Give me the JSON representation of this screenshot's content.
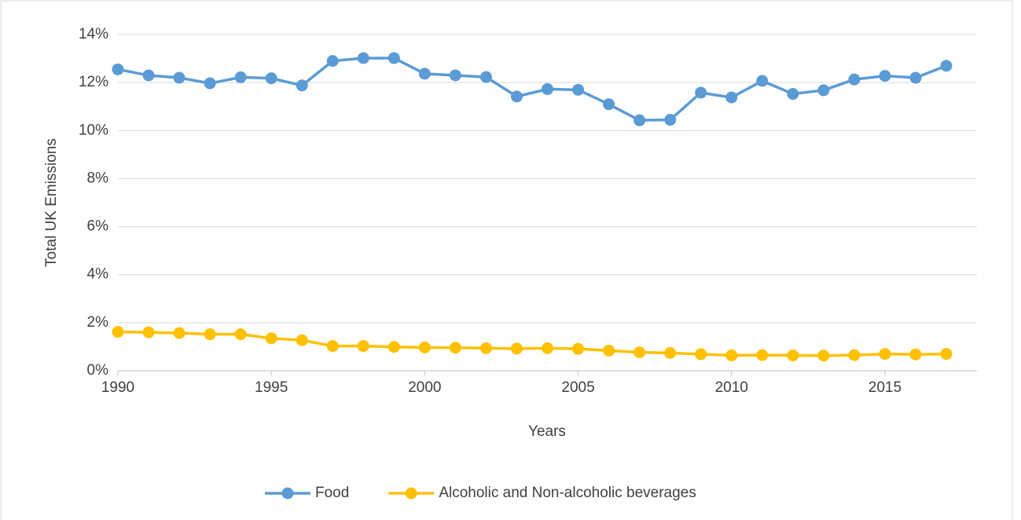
{
  "chart_data": {
    "type": "line",
    "x_label": "Years",
    "y_label": "Total UK Emissions",
    "x": [
      1990,
      1991,
      1992,
      1993,
      1994,
      1995,
      1996,
      1997,
      1998,
      1999,
      2000,
      2001,
      2002,
      2003,
      2004,
      2005,
      2006,
      2007,
      2008,
      2009,
      2010,
      2011,
      2012,
      2013,
      2014,
      2015,
      2016,
      2017
    ],
    "series": [
      {
        "name": "Food",
        "color": "#5b9bd5",
        "values": [
          12.55,
          12.3,
          12.2,
          11.97,
          12.22,
          12.18,
          11.88,
          12.9,
          13.02,
          13.02,
          12.37,
          12.3,
          12.23,
          11.42,
          11.73,
          11.7,
          11.1,
          10.43,
          10.45,
          11.58,
          11.38,
          12.07,
          11.53,
          11.68,
          12.13,
          12.28,
          12.2,
          12.7
        ]
      },
      {
        "name": "Alcoholic and Non-alcoholic beverages",
        "color": "#ffc000",
        "values": [
          1.62,
          1.6,
          1.57,
          1.52,
          1.52,
          1.35,
          1.27,
          1.03,
          1.03,
          0.99,
          0.97,
          0.96,
          0.94,
          0.92,
          0.94,
          0.91,
          0.84,
          0.77,
          0.74,
          0.69,
          0.64,
          0.65,
          0.64,
          0.63,
          0.65,
          0.7,
          0.68,
          0.7
        ]
      }
    ],
    "xlim": [
      1990,
      2018
    ],
    "xticks": [
      1990,
      1995,
      2000,
      2005,
      2010,
      2015
    ],
    "ylim": [
      0,
      14
    ],
    "yticks": [
      {
        "value": 0,
        "label": "0%"
      },
      {
        "value": 2,
        "label": "2%"
      },
      {
        "value": 4,
        "label": "4%"
      },
      {
        "value": 6,
        "label": "6%"
      },
      {
        "value": 8,
        "label": "8%"
      },
      {
        "value": 10,
        "label": "10%"
      },
      {
        "value": 12,
        "label": "12%"
      },
      {
        "value": 14,
        "label": "14%"
      }
    ],
    "grid": true,
    "legend": "bottom"
  }
}
